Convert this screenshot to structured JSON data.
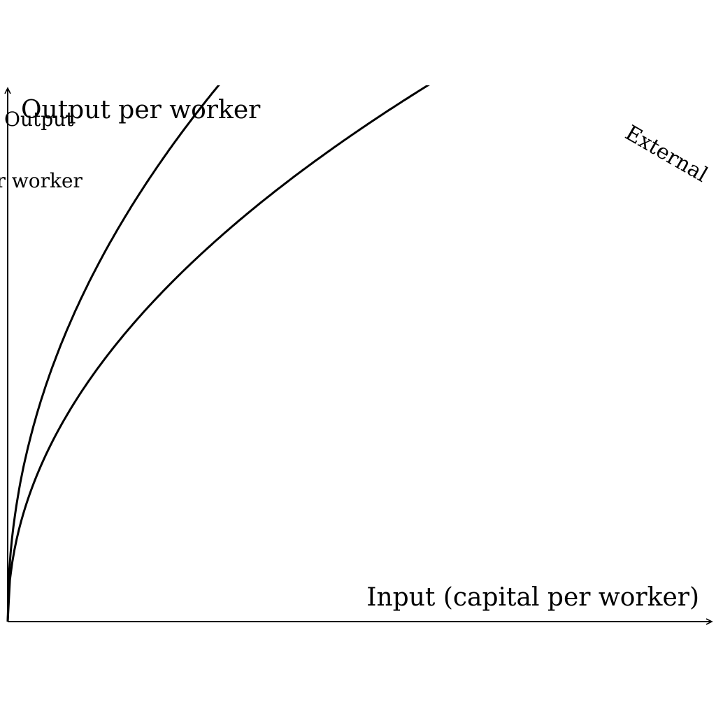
{
  "diagram": {
    "y_axis_label": "Output per worker",
    "x_axis_label": "Input (capital per worker)",
    "side_label_line1": "Output",
    "side_label_line2": "per worker",
    "rotated_label": "External",
    "curves": [
      {
        "name": "upper-production-curve"
      },
      {
        "name": "lower-production-curve"
      }
    ],
    "colors": {
      "stroke": "#000000",
      "background": "#ffffff"
    }
  }
}
